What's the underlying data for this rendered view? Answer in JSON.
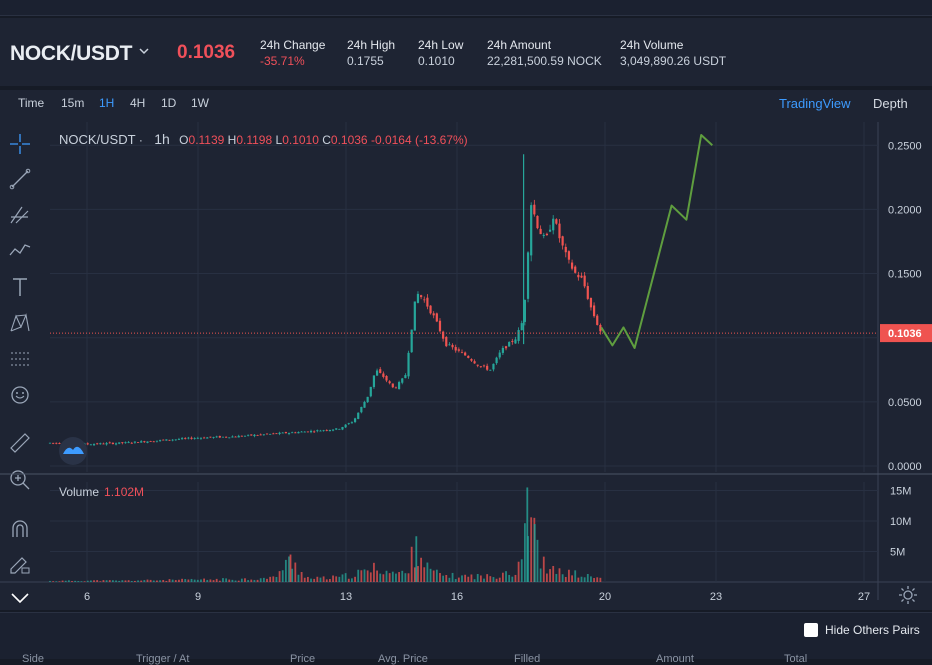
{
  "header": {
    "pair": "NOCK/USDT",
    "price": "0.1036",
    "stats": [
      {
        "label": "24h Change",
        "value": "-35.71%",
        "negative": true
      },
      {
        "label": "24h High",
        "value": "0.1755",
        "negative": false
      },
      {
        "label": "24h Low",
        "value": "0.1010",
        "negative": false
      },
      {
        "label": "24h Amount",
        "value": "22,281,500.59 NOCK",
        "negative": false
      },
      {
        "label": "24h Volume",
        "value": "3,049,890.26 USDT",
        "negative": false
      }
    ]
  },
  "timeframes": [
    {
      "label": "Time",
      "active": false
    },
    {
      "label": "15m",
      "active": false
    },
    {
      "label": "1H",
      "active": true
    },
    {
      "label": "4H",
      "active": false
    },
    {
      "label": "1D",
      "active": false
    },
    {
      "label": "1W",
      "active": false
    }
  ],
  "views": {
    "tradingview": "TradingView",
    "depth": "Depth"
  },
  "legend": {
    "pair": "NOCK/USDT",
    "dot": "·",
    "timeframe": "1h",
    "o_label": "O",
    "o_value": "0.1139",
    "h_label": "H",
    "h_value": "0.1198",
    "l_label": "L",
    "l_value": "0.1010",
    "c_label": "C",
    "c_value": "0.1036",
    "change": "-0.0164 (-13.67%)"
  },
  "volume_legend": {
    "label": "Volume",
    "value": "1.102M"
  },
  "chart_data": {
    "type": "candlestick",
    "price_axis_ticks": [
      "0.2500",
      "0.2000",
      "0.1500",
      "0.1000",
      "0.0500",
      "0.0000"
    ],
    "price_axis_values": [
      0.25,
      0.2,
      0.15,
      0.1,
      0.05,
      0.0
    ],
    "last_price_label": "0.1036",
    "last_price": 0.1036,
    "volume_axis_ticks": [
      "15M",
      "10M",
      "5M"
    ],
    "volume_axis_values": [
      15,
      10,
      5
    ],
    "x_ticks": [
      "6",
      "9",
      "13",
      "16",
      "20",
      "23",
      "27"
    ],
    "x_tick_days": [
      6,
      9,
      13,
      16,
      20,
      23,
      27
    ],
    "price_path": [
      [
        5.0,
        0.018
      ],
      [
        6.0,
        0.017
      ],
      [
        7.0,
        0.018
      ],
      [
        8.0,
        0.02
      ],
      [
        9.0,
        0.022
      ],
      [
        10.0,
        0.023
      ],
      [
        11.0,
        0.025
      ],
      [
        12.0,
        0.027
      ],
      [
        12.8,
        0.029
      ],
      [
        13.2,
        0.035
      ],
      [
        13.6,
        0.055
      ],
      [
        13.8,
        0.075
      ],
      [
        14.0,
        0.07
      ],
      [
        14.3,
        0.06
      ],
      [
        14.6,
        0.07
      ],
      [
        14.9,
        0.135
      ],
      [
        15.1,
        0.13
      ],
      [
        15.4,
        0.115
      ],
      [
        15.7,
        0.095
      ],
      [
        16.0,
        0.09
      ],
      [
        16.3,
        0.085
      ],
      [
        16.6,
        0.078
      ],
      [
        16.9,
        0.075
      ],
      [
        17.2,
        0.09
      ],
      [
        17.4,
        0.095
      ],
      [
        17.6,
        0.1
      ],
      [
        17.8,
        0.115
      ],
      [
        18.0,
        0.205
      ],
      [
        18.2,
        0.185
      ],
      [
        18.4,
        0.175
      ],
      [
        18.6,
        0.195
      ],
      [
        18.8,
        0.175
      ],
      [
        19.0,
        0.16
      ],
      [
        19.2,
        0.15
      ],
      [
        19.4,
        0.145
      ],
      [
        19.6,
        0.125
      ],
      [
        19.8,
        0.11
      ],
      [
        19.9,
        0.1036
      ]
    ],
    "spikes": [
      [
        17.8,
        0.243,
        0.095
      ]
    ],
    "arrow_projection": [
      [
        19.9,
        0.108
      ],
      [
        20.2,
        0.094
      ],
      [
        20.5,
        0.108
      ],
      [
        20.8,
        0.092
      ],
      [
        21.8,
        0.203
      ],
      [
        22.2,
        0.192
      ],
      [
        22.6,
        0.258
      ],
      [
        22.9,
        0.25
      ]
    ],
    "volume": [
      [
        5.0,
        0.2
      ],
      [
        6.0,
        0.3
      ],
      [
        7.0,
        0.3
      ],
      [
        8.0,
        0.4
      ],
      [
        9.0,
        0.5
      ],
      [
        10.0,
        0.6
      ],
      [
        11.0,
        0.8
      ],
      [
        11.5,
        4.5
      ],
      [
        12.0,
        0.7
      ],
      [
        12.8,
        1.0
      ],
      [
        13.2,
        1.6
      ],
      [
        13.6,
        2.4
      ],
      [
        13.9,
        3.3
      ],
      [
        14.2,
        2.0
      ],
      [
        14.6,
        1.8
      ],
      [
        14.9,
        7.5
      ],
      [
        15.2,
        3.0
      ],
      [
        15.5,
        1.6
      ],
      [
        16.0,
        1.2
      ],
      [
        16.5,
        1.3
      ],
      [
        17.0,
        1.1
      ],
      [
        17.3,
        2.7
      ],
      [
        17.6,
        1.5
      ],
      [
        17.9,
        15.5
      ],
      [
        18.1,
        9.5
      ],
      [
        18.4,
        2.5
      ],
      [
        18.8,
        2.2
      ],
      [
        19.2,
        1.7
      ],
      [
        19.6,
        1.1
      ],
      [
        19.9,
        0.8
      ]
    ],
    "colors": {
      "up": "#26a69a",
      "down": "#ef5350",
      "arrow": "#5f9e3f"
    }
  },
  "footer": {
    "hide_label": "Hide Others Pairs",
    "columns": [
      "Side",
      "Trigger / At",
      "Price",
      "Avg. Price",
      "Filled",
      "Amount",
      "Total"
    ]
  }
}
